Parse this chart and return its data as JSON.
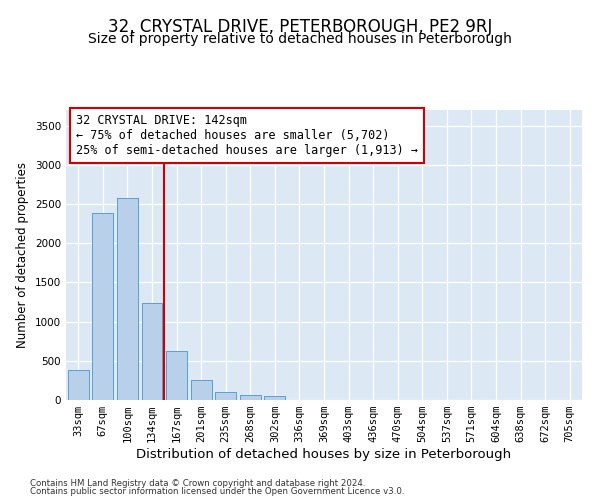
{
  "title": "32, CRYSTAL DRIVE, PETERBOROUGH, PE2 9RJ",
  "subtitle": "Size of property relative to detached houses in Peterborough",
  "xlabel": "Distribution of detached houses by size in Peterborough",
  "ylabel": "Number of detached properties",
  "categories": [
    "33sqm",
    "67sqm",
    "100sqm",
    "134sqm",
    "167sqm",
    "201sqm",
    "235sqm",
    "268sqm",
    "302sqm",
    "336sqm",
    "369sqm",
    "403sqm",
    "436sqm",
    "470sqm",
    "504sqm",
    "537sqm",
    "571sqm",
    "604sqm",
    "638sqm",
    "672sqm",
    "705sqm"
  ],
  "values": [
    380,
    2380,
    2580,
    1240,
    630,
    250,
    100,
    60,
    50,
    0,
    0,
    0,
    0,
    0,
    0,
    0,
    0,
    0,
    0,
    0,
    0
  ],
  "bar_color": "#b8d0ea",
  "bar_edge_color": "#5a9fd4",
  "red_line_index": 3.5,
  "annotation_line1": "32 CRYSTAL DRIVE: 142sqm",
  "annotation_line2": "← 75% of detached houses are smaller (5,702)",
  "annotation_line3": "25% of semi-detached houses are larger (1,913) →",
  "annotation_box_color": "white",
  "annotation_box_edge": "#cc0000",
  "ylim": [
    0,
    3700
  ],
  "yticks": [
    0,
    500,
    1000,
    1500,
    2000,
    2500,
    3000,
    3500
  ],
  "title_fontsize": 12,
  "subtitle_fontsize": 10,
  "xlabel_fontsize": 9.5,
  "ylabel_fontsize": 8.5,
  "tick_fontsize": 7.5,
  "annotation_fontsize": 8.5,
  "footer_line1": "Contains HM Land Registry data © Crown copyright and database right 2024.",
  "footer_line2": "Contains public sector information licensed under the Open Government Licence v3.0.",
  "bg_color": "#dce9f5"
}
